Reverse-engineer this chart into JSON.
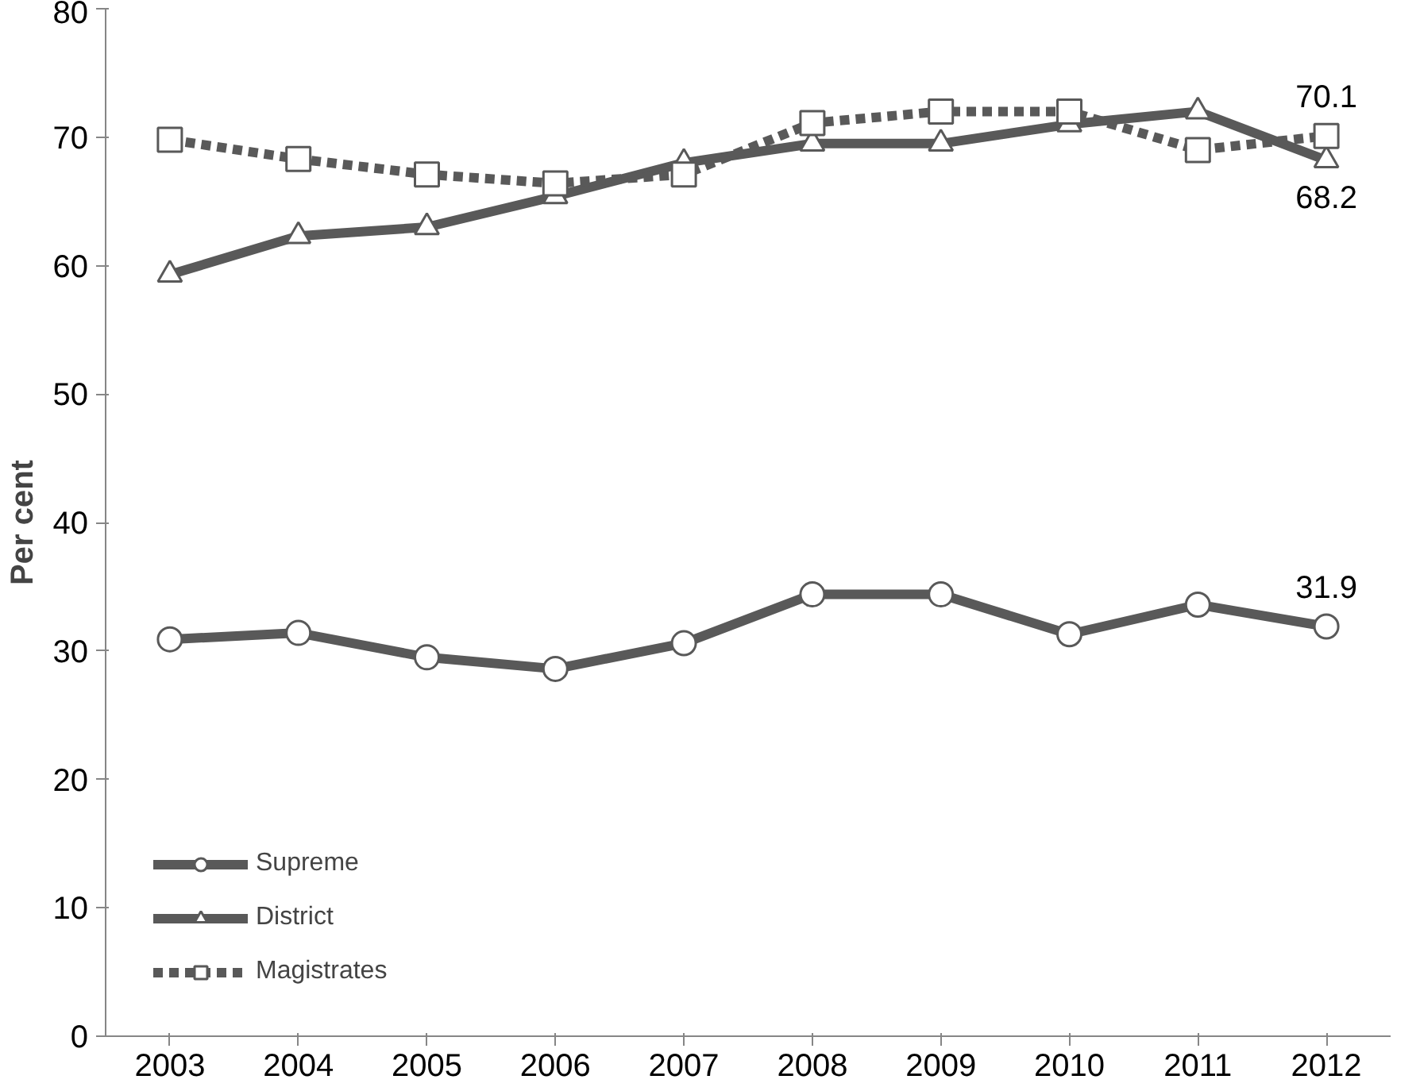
{
  "chart_data": {
    "type": "line",
    "ylabel": "Per cent",
    "categories": [
      "2003",
      "2004",
      "2005",
      "2006",
      "2007",
      "2008",
      "2009",
      "2010",
      "2011",
      "2012"
    ],
    "ylim": [
      0,
      80
    ],
    "yticks": [
      0,
      10,
      20,
      30,
      40,
      50,
      60,
      70,
      80
    ],
    "grid": false,
    "legend": "bottom left",
    "series": [
      {
        "name": "Supreme",
        "color": "#595959",
        "marker": "circle",
        "line_style": "solid",
        "values": [
          30.9,
          31.4,
          29.5,
          28.6,
          30.6,
          34.4,
          34.4,
          31.3,
          33.6,
          31.9
        ],
        "value_labels": [
          null,
          null,
          null,
          null,
          null,
          null,
          null,
          null,
          null,
          "31.9"
        ]
      },
      {
        "name": "District",
        "color": "#595959",
        "marker": "triangle",
        "line_style": "solid",
        "values": [
          59.3,
          62.3,
          63.0,
          65.4,
          68.0,
          69.5,
          69.5,
          71.0,
          72.0,
          68.2
        ],
        "value_labels": [
          null,
          null,
          null,
          null,
          null,
          null,
          null,
          null,
          null,
          "68.2"
        ]
      },
      {
        "name": "Magistrates",
        "color": "#595959",
        "marker": "square",
        "line_style": "dashed",
        "values": [
          69.8,
          68.3,
          67.1,
          66.4,
          67.1,
          71.1,
          72.0,
          72.0,
          69.0,
          70.1
        ],
        "value_labels": [
          null,
          null,
          null,
          null,
          null,
          null,
          null,
          null,
          null,
          "70.1"
        ]
      }
    ]
  }
}
